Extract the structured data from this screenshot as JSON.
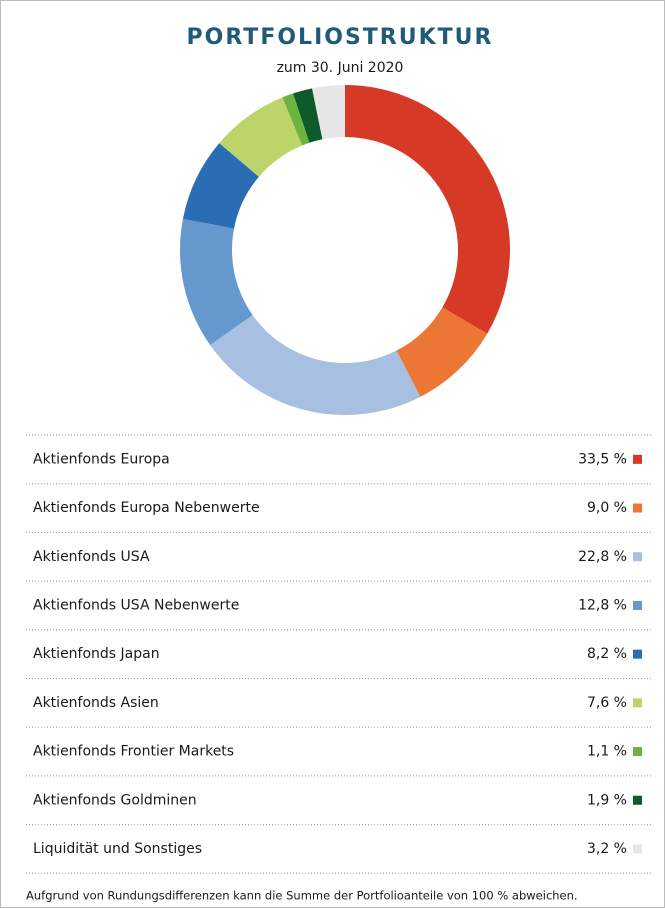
{
  "chart_data": {
    "type": "donut",
    "title": "PORTFOLIOSTRUKTUR",
    "subtitle": "zum 30. Juni 2020",
    "categories": [
      "Aktienfonds Europa",
      "Aktienfonds Europa Nebenwerte",
      "Aktienfonds USA",
      "Aktienfonds USA Nebenwerte",
      "Aktienfonds Japan",
      "Aktienfonds Asien",
      "Aktienfonds Frontier Markets",
      "Aktienfonds Goldminen",
      "Liquidität und Sonstiges"
    ],
    "values": [
      33.5,
      9.0,
      22.8,
      12.8,
      8.2,
      7.6,
      1.1,
      1.9,
      3.2
    ],
    "value_labels": [
      "33,5 %",
      "9,0 %",
      "22,8 %",
      "12,8 %",
      "8,2 %",
      "7,6 %",
      "1,1 %",
      "1,9 %",
      "3,2 %"
    ],
    "colors": [
      "#d63a27",
      "#ec7634",
      "#a7bfe0",
      "#6598cc",
      "#2a6db3",
      "#bcd46a",
      "#6db33f",
      "#0e5a2a",
      "#e6e6e6"
    ],
    "note": "Aufgrund von Rundungsdifferenzen kann die Summe der Portfolioanteile von 100 % abweichen."
  }
}
